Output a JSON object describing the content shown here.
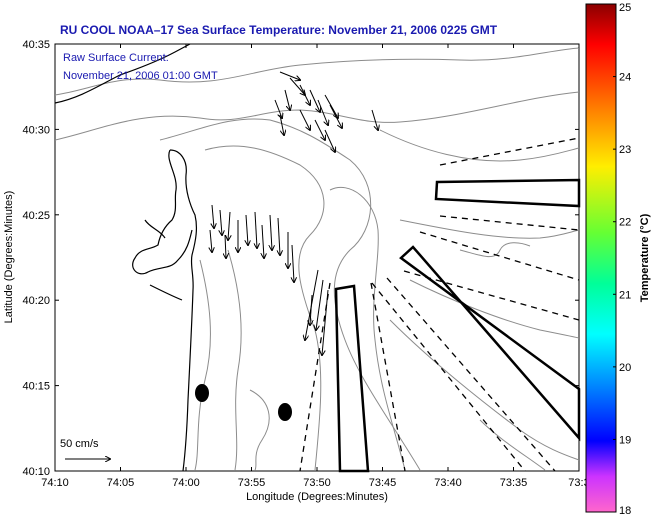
{
  "title": "RU COOL  NOAA–17  Sea Surface Temperature:  November 21, 2006 0225 GMT",
  "current_note": {
    "line1": "Raw Surface Current:",
    "line2": "November 21, 2006 01:00 GMT"
  },
  "axes": {
    "xlabel": "Longitude (Degrees:Minutes)",
    "ylabel": "Latitude (Degrees:Minutes)",
    "x_ticks": [
      "74:10",
      "74:05",
      "74:00",
      "73:55",
      "73:50",
      "73:45",
      "73:40",
      "73:35",
      "73:3"
    ],
    "y_ticks": [
      "40:35",
      "40:30",
      "40:25",
      "40:20",
      "40:15",
      "40:10"
    ]
  },
  "scale_bar": {
    "label": "50 cm/s"
  },
  "colorbar": {
    "label": "Temperature (°C)",
    "ticks": [
      "25",
      "24",
      "23",
      "22",
      "21",
      "20",
      "19",
      "18"
    ],
    "min": 18,
    "max": 25
  },
  "colors": {
    "title": "#1a1ab0",
    "coast": "#000000",
    "bathymetry": "#808080"
  }
}
